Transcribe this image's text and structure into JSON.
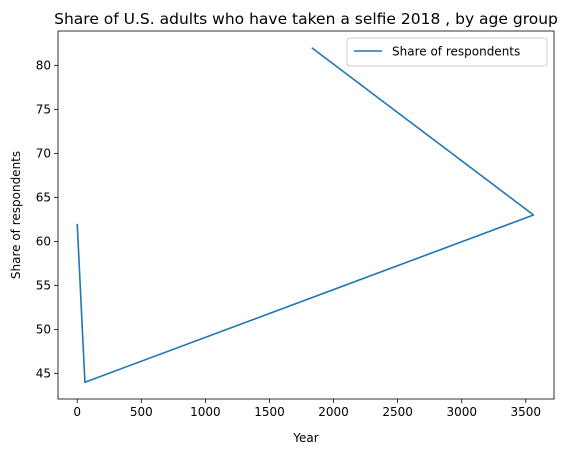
{
  "chart_data": {
    "type": "line",
    "title": "Share of U.S. adults who have taken a selfie 2018 , by age group",
    "xlabel": "Year",
    "ylabel": "Share of respondents",
    "xlim": [
      -150,
      3720
    ],
    "ylim": [
      42.1,
      83.9
    ],
    "xticks": [
      0,
      500,
      1000,
      1500,
      2000,
      2500,
      3000,
      3500
    ],
    "yticks": [
      45,
      50,
      55,
      60,
      65,
      70,
      75,
      80
    ],
    "grid": false,
    "legend_position": "upper-right",
    "series": [
      {
        "name": "Share of respondents",
        "color": "#1f77b4",
        "x": [
          0,
          60,
          3560,
          1830
        ],
        "y": [
          62,
          44,
          63,
          82
        ]
      }
    ]
  }
}
